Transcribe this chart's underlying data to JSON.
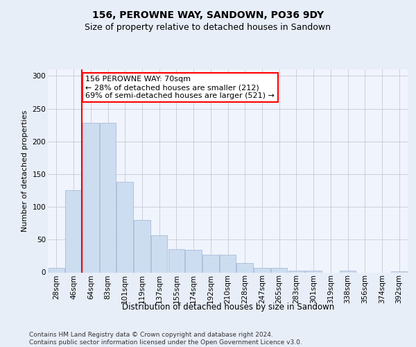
{
  "title": "156, PEROWNE WAY, SANDOWN, PO36 9DY",
  "subtitle": "Size of property relative to detached houses in Sandown",
  "xlabel": "Distribution of detached houses by size in Sandown",
  "ylabel": "Number of detached properties",
  "categories": [
    "28sqm",
    "46sqm",
    "64sqm",
    "83sqm",
    "101sqm",
    "119sqm",
    "137sqm",
    "155sqm",
    "174sqm",
    "192sqm",
    "210sqm",
    "228sqm",
    "247sqm",
    "265sqm",
    "283sqm",
    "301sqm",
    "319sqm",
    "338sqm",
    "356sqm",
    "374sqm",
    "392sqm"
  ],
  "values": [
    7,
    126,
    228,
    228,
    138,
    80,
    57,
    35,
    34,
    27,
    27,
    14,
    7,
    7,
    3,
    3,
    0,
    3,
    0,
    0,
    2
  ],
  "bar_color": "#ccddf0",
  "bar_edgecolor": "#aabbd8",
  "vline_color": "red",
  "vline_x": 1.5,
  "annotation_text": "156 PEROWNE WAY: 70sqm\n← 28% of detached houses are smaller (212)\n69% of semi-detached houses are larger (521) →",
  "annotation_box_color": "white",
  "annotation_box_edgecolor": "red",
  "ylim": [
    0,
    310
  ],
  "yticks": [
    0,
    50,
    100,
    150,
    200,
    250,
    300
  ],
  "footer": "Contains HM Land Registry data © Crown copyright and database right 2024.\nContains public sector information licensed under the Open Government Licence v3.0.",
  "background_color": "#e8eef8",
  "plot_background": "#f0f4fc",
  "grid_color": "#c8c8d8",
  "title_fontsize": 10,
  "subtitle_fontsize": 9,
  "xlabel_fontsize": 8.5,
  "ylabel_fontsize": 8,
  "tick_fontsize": 7.5,
  "footer_fontsize": 6.5,
  "annot_fontsize": 8
}
